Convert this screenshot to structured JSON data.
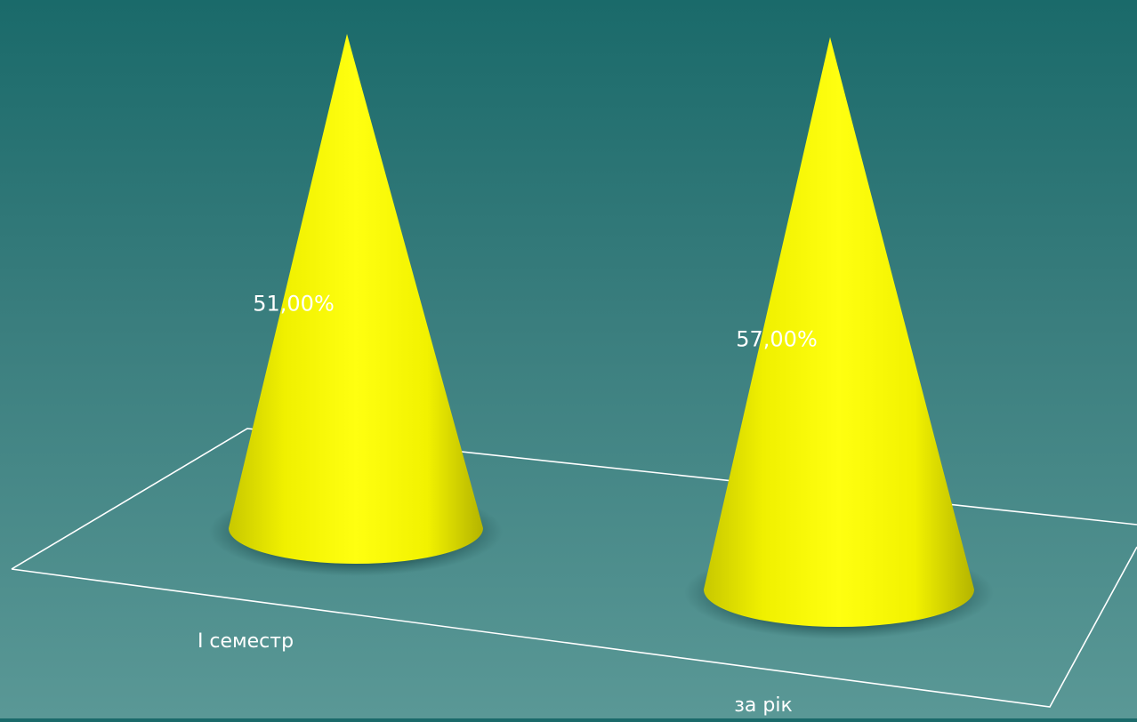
{
  "chart_data": {
    "type": "bar",
    "shape": "cone-3d",
    "categories": [
      "I семестр",
      "за рік"
    ],
    "values": [
      51,
      57
    ],
    "data_labels": [
      "51,00%",
      "57,00%"
    ],
    "unit": "%",
    "ylim": [
      0,
      60
    ],
    "title": "",
    "xlabel": "",
    "ylabel": "",
    "grid": false,
    "legend": "none",
    "colors": {
      "bar": "#ffff00",
      "bar_shade": "#b8b800",
      "label": "#ffffff",
      "floor_line": "#ffffff",
      "background_top": "#1a6a6a",
      "background_bottom": "#5a9896"
    }
  }
}
